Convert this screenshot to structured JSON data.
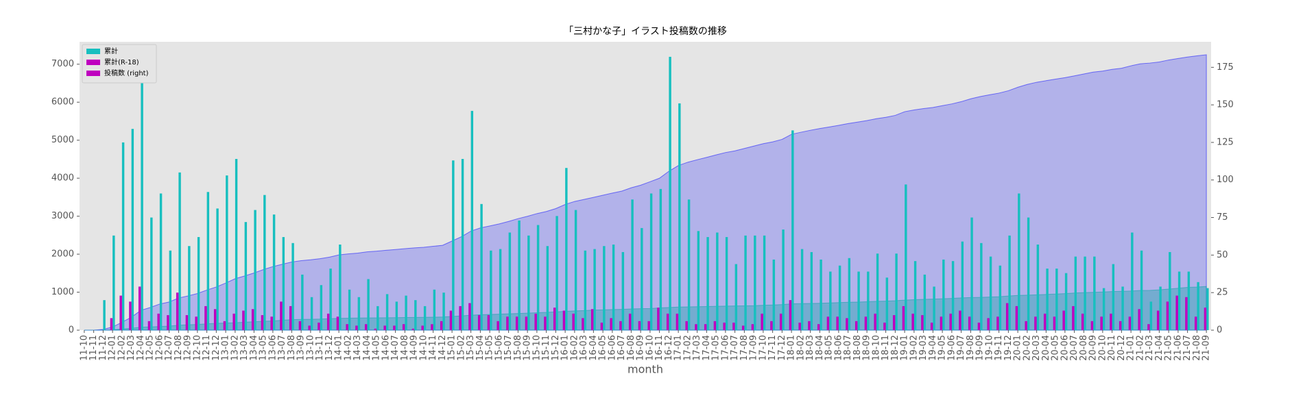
{
  "chart_data": {
    "type": "bar_area",
    "title": "「三村かな子」イラスト投稿数の推移",
    "x_label": "month",
    "categories": [
      "11-10",
      "11-11",
      "11-12",
      "12-01",
      "12-02",
      "12-03",
      "12-04",
      "12-05",
      "12-06",
      "12-07",
      "12-08",
      "12-09",
      "12-10",
      "12-11",
      "12-12",
      "13-01",
      "13-02",
      "13-03",
      "13-04",
      "13-05",
      "13-06",
      "13-07",
      "13-08",
      "13-09",
      "13-10",
      "13-11",
      "13-12",
      "14-01",
      "14-02",
      "14-03",
      "14-04",
      "14-05",
      "14-06",
      "14-07",
      "14-08",
      "14-09",
      "14-10",
      "14-11",
      "14-12",
      "15-01",
      "15-02",
      "15-03",
      "15-04",
      "15-05",
      "15-06",
      "15-07",
      "15-08",
      "15-09",
      "15-10",
      "15-11",
      "15-12",
      "16-01",
      "16-02",
      "16-03",
      "16-04",
      "16-05",
      "16-06",
      "16-07",
      "16-08",
      "16-09",
      "16-10",
      "16-11",
      "16-12",
      "17-01",
      "17-02",
      "17-03",
      "17-04",
      "17-05",
      "17-06",
      "17-07",
      "17-08",
      "17-09",
      "17-10",
      "17-11",
      "17-12",
      "18-01",
      "18-02",
      "18-03",
      "18-04",
      "18-05",
      "18-06",
      "18-07",
      "18-08",
      "18-09",
      "18-10",
      "18-11",
      "18-12",
      "19-01",
      "19-02",
      "19-03",
      "19-04",
      "19-05",
      "19-06",
      "19-07",
      "19-08",
      "19-09",
      "19-10",
      "19-11",
      "19-12",
      "20-01",
      "20-02",
      "20-03",
      "20-04",
      "20-05",
      "20-06",
      "20-07",
      "20-08",
      "20-09",
      "20-10",
      "20-11",
      "20-12",
      "21-01",
      "21-02",
      "21-03",
      "21-04",
      "21-05",
      "21-06",
      "21-07",
      "21-08",
      "21-09"
    ],
    "series": [
      {
        "kind": "area",
        "axis": "y",
        "color": "#0000ff",
        "opacity": 0.22,
        "values": [
          0,
          0,
          20,
          83,
          208,
          342,
          522,
          597,
          688,
          741,
          846,
          902,
          964,
          1056,
          1137,
          1240,
          1354,
          1426,
          1506,
          1596,
          1673,
          1735,
          1793,
          1830,
          1852,
          1882,
          1923,
          1980,
          2007,
          2029,
          2063,
          2079,
          2103,
          2122,
          2145,
          2165,
          2181,
          2208,
          2233,
          2346,
          2460,
          2606,
          2690,
          2743,
          2797,
          2862,
          2935,
          2998,
          3068,
          3124,
          3200,
          3308,
          3388,
          3441,
          3495,
          3551,
          3608,
          3660,
          3747,
          3815,
          3906,
          4000,
          4182,
          4333,
          4420,
          4486,
          4548,
          4613,
          4675,
          4719,
          4782,
          4845,
          4908,
          4955,
          5022,
          5155,
          5209,
          5261,
          5308,
          5347,
          5390,
          5438,
          5477,
          5516,
          5567,
          5602,
          5653,
          5750,
          5796,
          5833,
          5862,
          5909,
          5955,
          6014,
          6089,
          6147,
          6196,
          6239,
          6302,
          6393,
          6468,
          6525,
          6566,
          6607,
          6645,
          6694,
          6743,
          6792,
          6820,
          6864,
          6893,
          6958,
          7011,
          7030,
          7059,
          7111,
          7150,
          7189,
          7221,
          7249
        ]
      },
      {
        "kind": "area",
        "axis": "y",
        "color": "#00a0a0",
        "opacity": 0.35,
        "values": [
          0,
          0,
          0,
          8,
          31,
          50,
          79,
          85,
          96,
          106,
          131,
          141,
          150,
          166,
          180,
          186,
          197,
          210,
          224,
          234,
          243,
          262,
          278,
          284,
          287,
          292,
          303,
          312,
          316,
          319,
          323,
          324,
          327,
          330,
          334,
          335,
          338,
          342,
          348,
          361,
          377,
          395,
          405,
          415,
          421,
          430,
          439,
          448,
          459,
          468,
          483,
          496,
          507,
          515,
          529,
          534,
          542,
          548,
          559,
          565,
          571,
          586,
          597,
          608,
          614,
          618,
          622,
          628,
          633,
          638,
          641,
          645,
          656,
          662,
          673,
          693,
          698,
          704,
          708,
          717,
          726,
          734,
          740,
          749,
          760,
          765,
          775,
          791,
          802,
          812,
          817,
          826,
          837,
          850,
          859,
          864,
          872,
          881,
          899,
          915,
          921,
          930,
          941,
          950,
          963,
          979,
          990,
          996,
          1005,
          1016,
          1022,
          1031,
          1045,
          1049,
          1062,
          1081,
          1104,
          1126,
          1135,
          1150
        ]
      },
      {
        "kind": "bar",
        "axis": "y2",
        "color": "#17bfbf",
        "slot": 1,
        "values": [
          0,
          0,
          20,
          63,
          125,
          134,
          180,
          75,
          91,
          53,
          105,
          56,
          62,
          92,
          81,
          103,
          114,
          72,
          80,
          90,
          77,
          62,
          58,
          37,
          22,
          30,
          41,
          57,
          27,
          22,
          34,
          16,
          24,
          19,
          23,
          20,
          16,
          27,
          25,
          113,
          114,
          146,
          84,
          53,
          54,
          65,
          73,
          63,
          70,
          56,
          76,
          108,
          80,
          53,
          54,
          56,
          57,
          52,
          87,
          68,
          91,
          94,
          182,
          151,
          87,
          66,
          62,
          65,
          62,
          44,
          63,
          63,
          63,
          47,
          67,
          133,
          54,
          52,
          47,
          39,
          43,
          48,
          39,
          39,
          51,
          35,
          51,
          97,
          46,
          37,
          29,
          47,
          46,
          59,
          75,
          58,
          49,
          43,
          63,
          91,
          75,
          57,
          41,
          41,
          38,
          49,
          49,
          49,
          28,
          44,
          29,
          65,
          53,
          19,
          29,
          52,
          39,
          39,
          32,
          28
        ]
      },
      {
        "kind": "bar",
        "axis": "y2",
        "color": "#bf00bf",
        "slot": 0,
        "values": [
          0,
          0,
          0,
          8,
          23,
          19,
          29,
          6,
          11,
          10,
          25,
          10,
          9,
          16,
          14,
          6,
          11,
          13,
          14,
          10,
          9,
          19,
          16,
          6,
          3,
          5,
          11,
          9,
          4,
          3,
          4,
          1,
          3,
          3,
          4,
          1,
          3,
          4,
          6,
          13,
          16,
          18,
          10,
          10,
          6,
          9,
          9,
          9,
          11,
          9,
          15,
          13,
          11,
          8,
          14,
          5,
          8,
          6,
          11,
          6,
          6,
          15,
          11,
          11,
          6,
          4,
          4,
          6,
          5,
          5,
          3,
          4,
          11,
          6,
          11,
          20,
          5,
          6,
          4,
          9,
          9,
          8,
          6,
          9,
          11,
          5,
          10,
          16,
          11,
          10,
          5,
          9,
          11,
          13,
          9,
          5,
          8,
          9,
          18,
          16,
          6,
          9,
          11,
          9,
          13,
          16,
          11,
          6,
          9,
          11,
          6,
          9,
          14,
          4,
          13,
          19,
          23,
          22,
          9,
          15
        ]
      }
    ],
    "legend": [
      {
        "name": "累計",
        "color": "#17bfbf"
      },
      {
        "name": "累計(R-18)",
        "color": "#bf00bf"
      },
      {
        "name": "投稿数 (right)",
        "color": "#bf00bf"
      }
    ],
    "legend_position": "upper left",
    "ylim": [
      0,
      7590
    ],
    "yticks": [
      0,
      1000,
      2000,
      3000,
      4000,
      5000,
      6000,
      7000
    ],
    "y2lim": [
      0,
      192
    ],
    "y2ticks": [
      0,
      25,
      50,
      75,
      100,
      125,
      150,
      175
    ],
    "grid": false
  }
}
